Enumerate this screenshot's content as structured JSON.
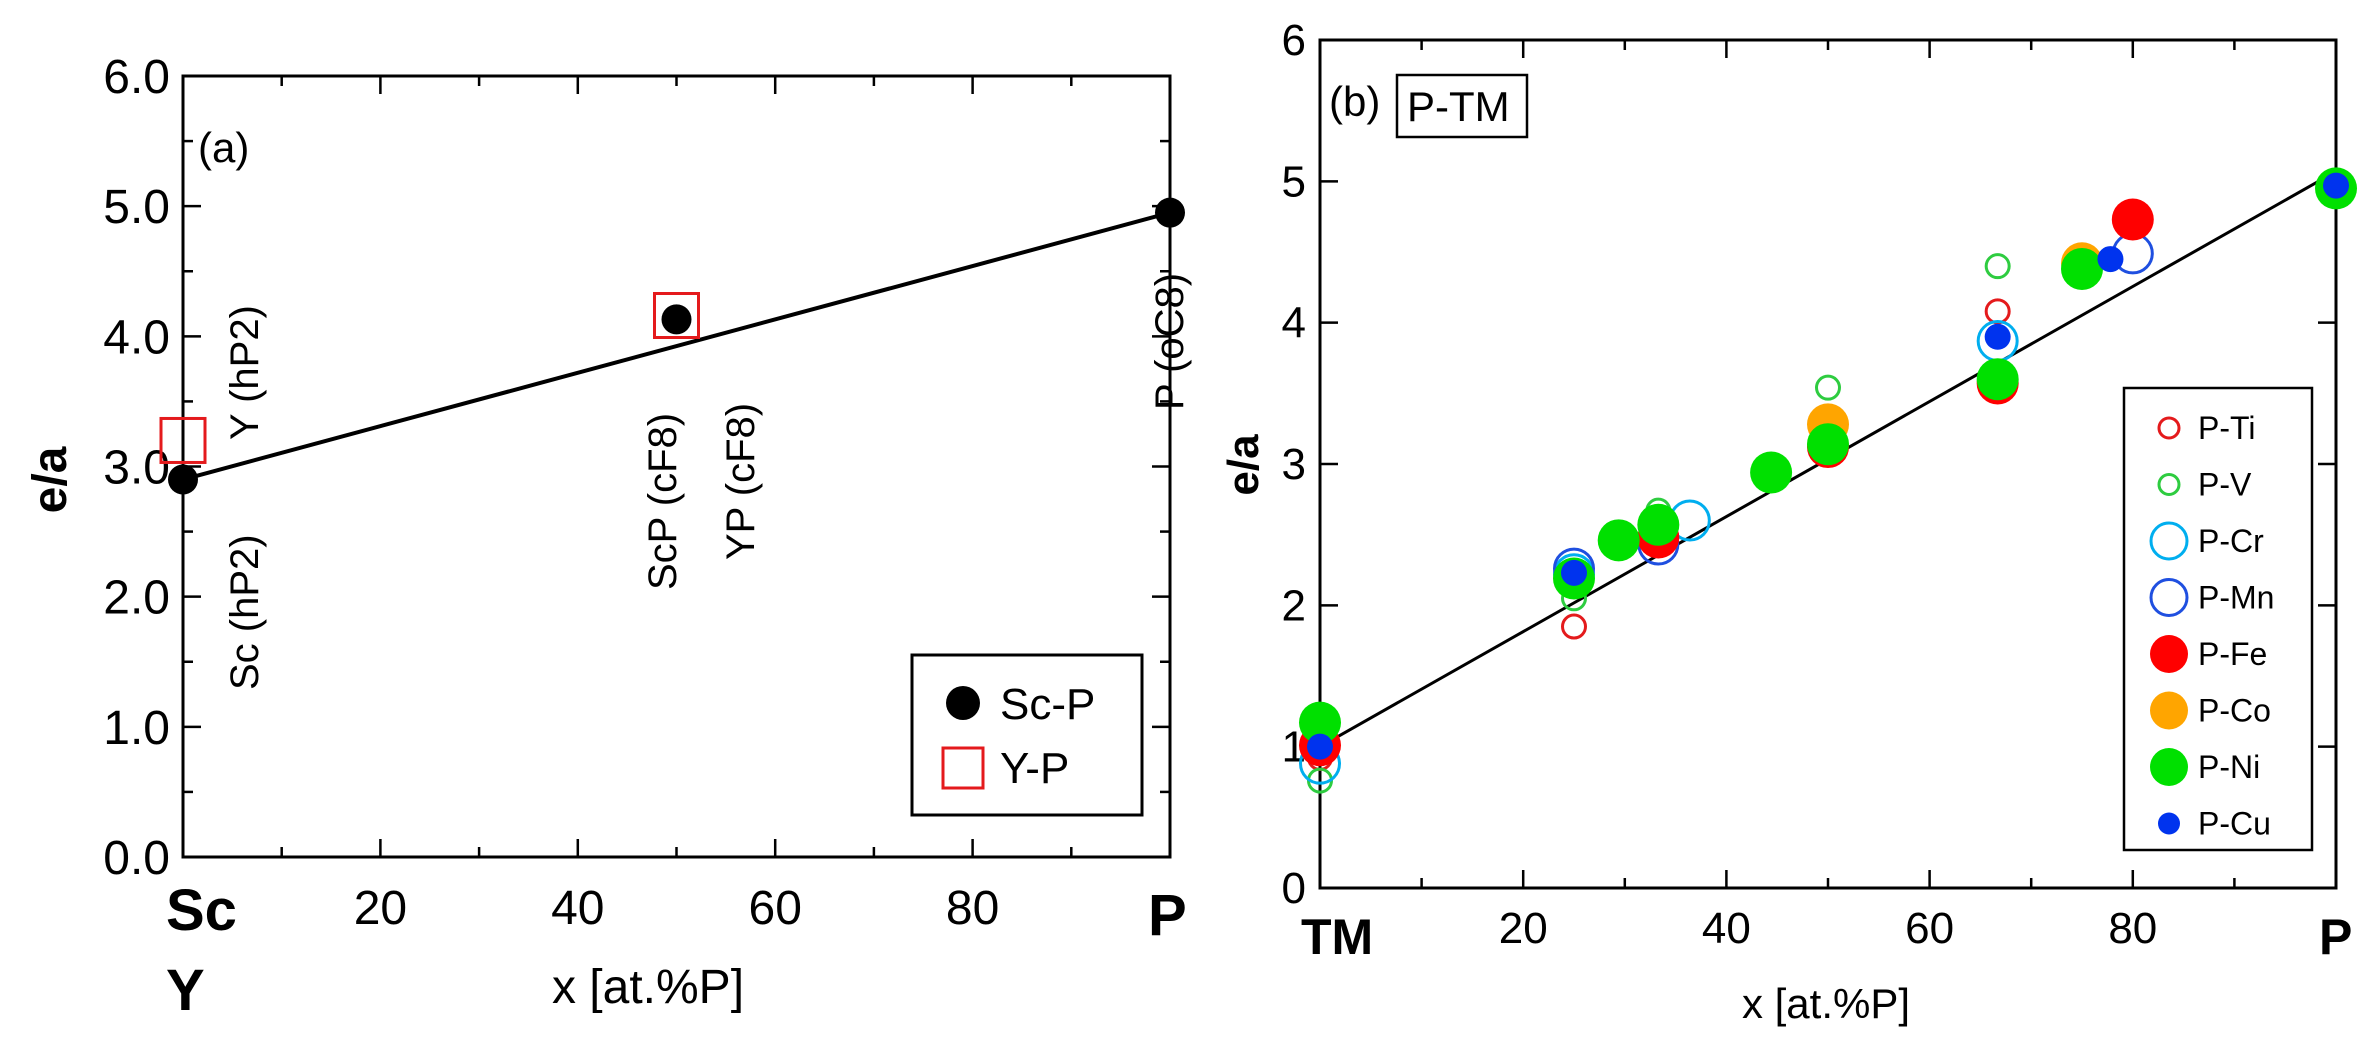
{
  "chart_data": [
    {
      "type": "scatter",
      "panel_label": "(a)",
      "title": "",
      "ylabel": "e/a",
      "xlabel": "x [at.%P]",
      "xlim": [
        0,
        100
      ],
      "ylim": [
        0,
        6
      ],
      "x_tick_labels": [
        "20",
        "40",
        "60",
        "80"
      ],
      "x_tick_values": [
        20,
        40,
        60,
        80
      ],
      "y_tick_labels": [
        "0.0",
        "1.0",
        "2.0",
        "3.0",
        "4.0",
        "5.0",
        "6.0"
      ],
      "y_tick_values": [
        0,
        1,
        2,
        3,
        4,
        5,
        6
      ],
      "x_end_labels": {
        "left_top": "Sc",
        "left_bottom": "Y",
        "right": "P"
      },
      "line": {
        "x": [
          0,
          100
        ],
        "y": [
          2.9,
          4.95
        ]
      },
      "series": [
        {
          "name": "Sc-P",
          "marker": "filled-circle",
          "color": "#000000",
          "points": [
            {
              "x": 0,
              "y": 2.9
            },
            {
              "x": 50,
              "y": 4.13
            },
            {
              "x": 100,
              "y": 4.95
            }
          ]
        },
        {
          "name": "Y-P",
          "marker": "open-square",
          "color": "#e41a1c",
          "points": [
            {
              "x": 0,
              "y": 3.2
            },
            {
              "x": 50,
              "y": 4.16
            }
          ]
        }
      ],
      "annotations": [
        "Sc (hP2)",
        "Y (hP2)",
        "ScP (cF8)",
        "YP (cF8)",
        "P (oC8)"
      ],
      "legend_position": "bottom-right"
    },
    {
      "type": "scatter",
      "panel_label": "(b)",
      "title": "P-TM",
      "ylabel": "e/a",
      "xlabel": "x [at.%P]",
      "xlim": [
        0,
        100
      ],
      "ylim": [
        0,
        6
      ],
      "x_tick_labels": [
        "20",
        "40",
        "60",
        "80"
      ],
      "x_tick_values": [
        20,
        40,
        60,
        80
      ],
      "y_tick_labels": [
        "0",
        "1",
        "2",
        "3",
        "4",
        "5",
        "6"
      ],
      "y_tick_values": [
        0,
        1,
        2,
        3,
        4,
        5,
        6
      ],
      "x_end_labels": {
        "left": "TM",
        "right": "P"
      },
      "line": {
        "x": [
          0,
          100
        ],
        "y": [
          1.0,
          5.07
        ]
      },
      "series": [
        {
          "name": "P-Ti",
          "color": "#e41a1c",
          "filled": false,
          "size": "small",
          "points": [
            {
              "x": 0,
              "y": 0.92
            },
            {
              "x": 25,
              "y": 1.85
            },
            {
              "x": 66.7,
              "y": 4.08
            }
          ]
        },
        {
          "name": "P-V",
          "color": "#2ecc40",
          "filled": false,
          "size": "small",
          "points": [
            {
              "x": 0,
              "y": 0.76
            },
            {
              "x": 25,
              "y": 2.05
            },
            {
              "x": 33.3,
              "y": 2.67
            },
            {
              "x": 50,
              "y": 3.54
            },
            {
              "x": 66.7,
              "y": 4.4
            }
          ]
        },
        {
          "name": "P-Cr",
          "color": "#00aeef",
          "filled": false,
          "size": "large",
          "points": [
            {
              "x": 0,
              "y": 0.88
            },
            {
              "x": 25,
              "y": 2.22
            },
            {
              "x": 36.4,
              "y": 2.6
            },
            {
              "x": 66.7,
              "y": 3.87
            }
          ]
        },
        {
          "name": "P-Mn",
          "color": "#1f4fe0",
          "filled": false,
          "size": "large",
          "points": [
            {
              "x": 25,
              "y": 2.26
            },
            {
              "x": 33.3,
              "y": 2.43
            },
            {
              "x": 80,
              "y": 4.49
            }
          ]
        },
        {
          "name": "P-Fe",
          "color": "#ff0000",
          "filled": true,
          "size": "large",
          "points": [
            {
              "x": 0,
              "y": 1.01
            },
            {
              "x": 33.3,
              "y": 2.48
            },
            {
              "x": 50,
              "y": 3.12
            },
            {
              "x": 66.7,
              "y": 3.57
            },
            {
              "x": 80,
              "y": 4.73
            }
          ]
        },
        {
          "name": "P-Co",
          "color": "#ffa500",
          "filled": true,
          "size": "large",
          "points": [
            {
              "x": 50,
              "y": 3.28
            },
            {
              "x": 75,
              "y": 4.42
            }
          ]
        },
        {
          "name": "P-Ni",
          "color": "#00e000",
          "filled": true,
          "size": "large",
          "points": [
            {
              "x": 0,
              "y": 1.17
            },
            {
              "x": 25,
              "y": 2.19
            },
            {
              "x": 29.4,
              "y": 2.46
            },
            {
              "x": 33.3,
              "y": 2.57
            },
            {
              "x": 44.4,
              "y": 2.94
            },
            {
              "x": 50,
              "y": 3.14
            },
            {
              "x": 66.7,
              "y": 3.6
            },
            {
              "x": 75,
              "y": 4.38
            },
            {
              "x": 100,
              "y": 4.95
            }
          ]
        },
        {
          "name": "P-Cu",
          "color": "#0033ee",
          "filled": true,
          "size": "small",
          "points": [
            {
              "x": 0,
              "y": 1.0
            },
            {
              "x": 25,
              "y": 2.23
            },
            {
              "x": 66.7,
              "y": 3.9
            },
            {
              "x": 77.8,
              "y": 4.45
            },
            {
              "x": 100,
              "y": 4.97
            }
          ]
        }
      ],
      "legend_position": "bottom-right"
    }
  ]
}
